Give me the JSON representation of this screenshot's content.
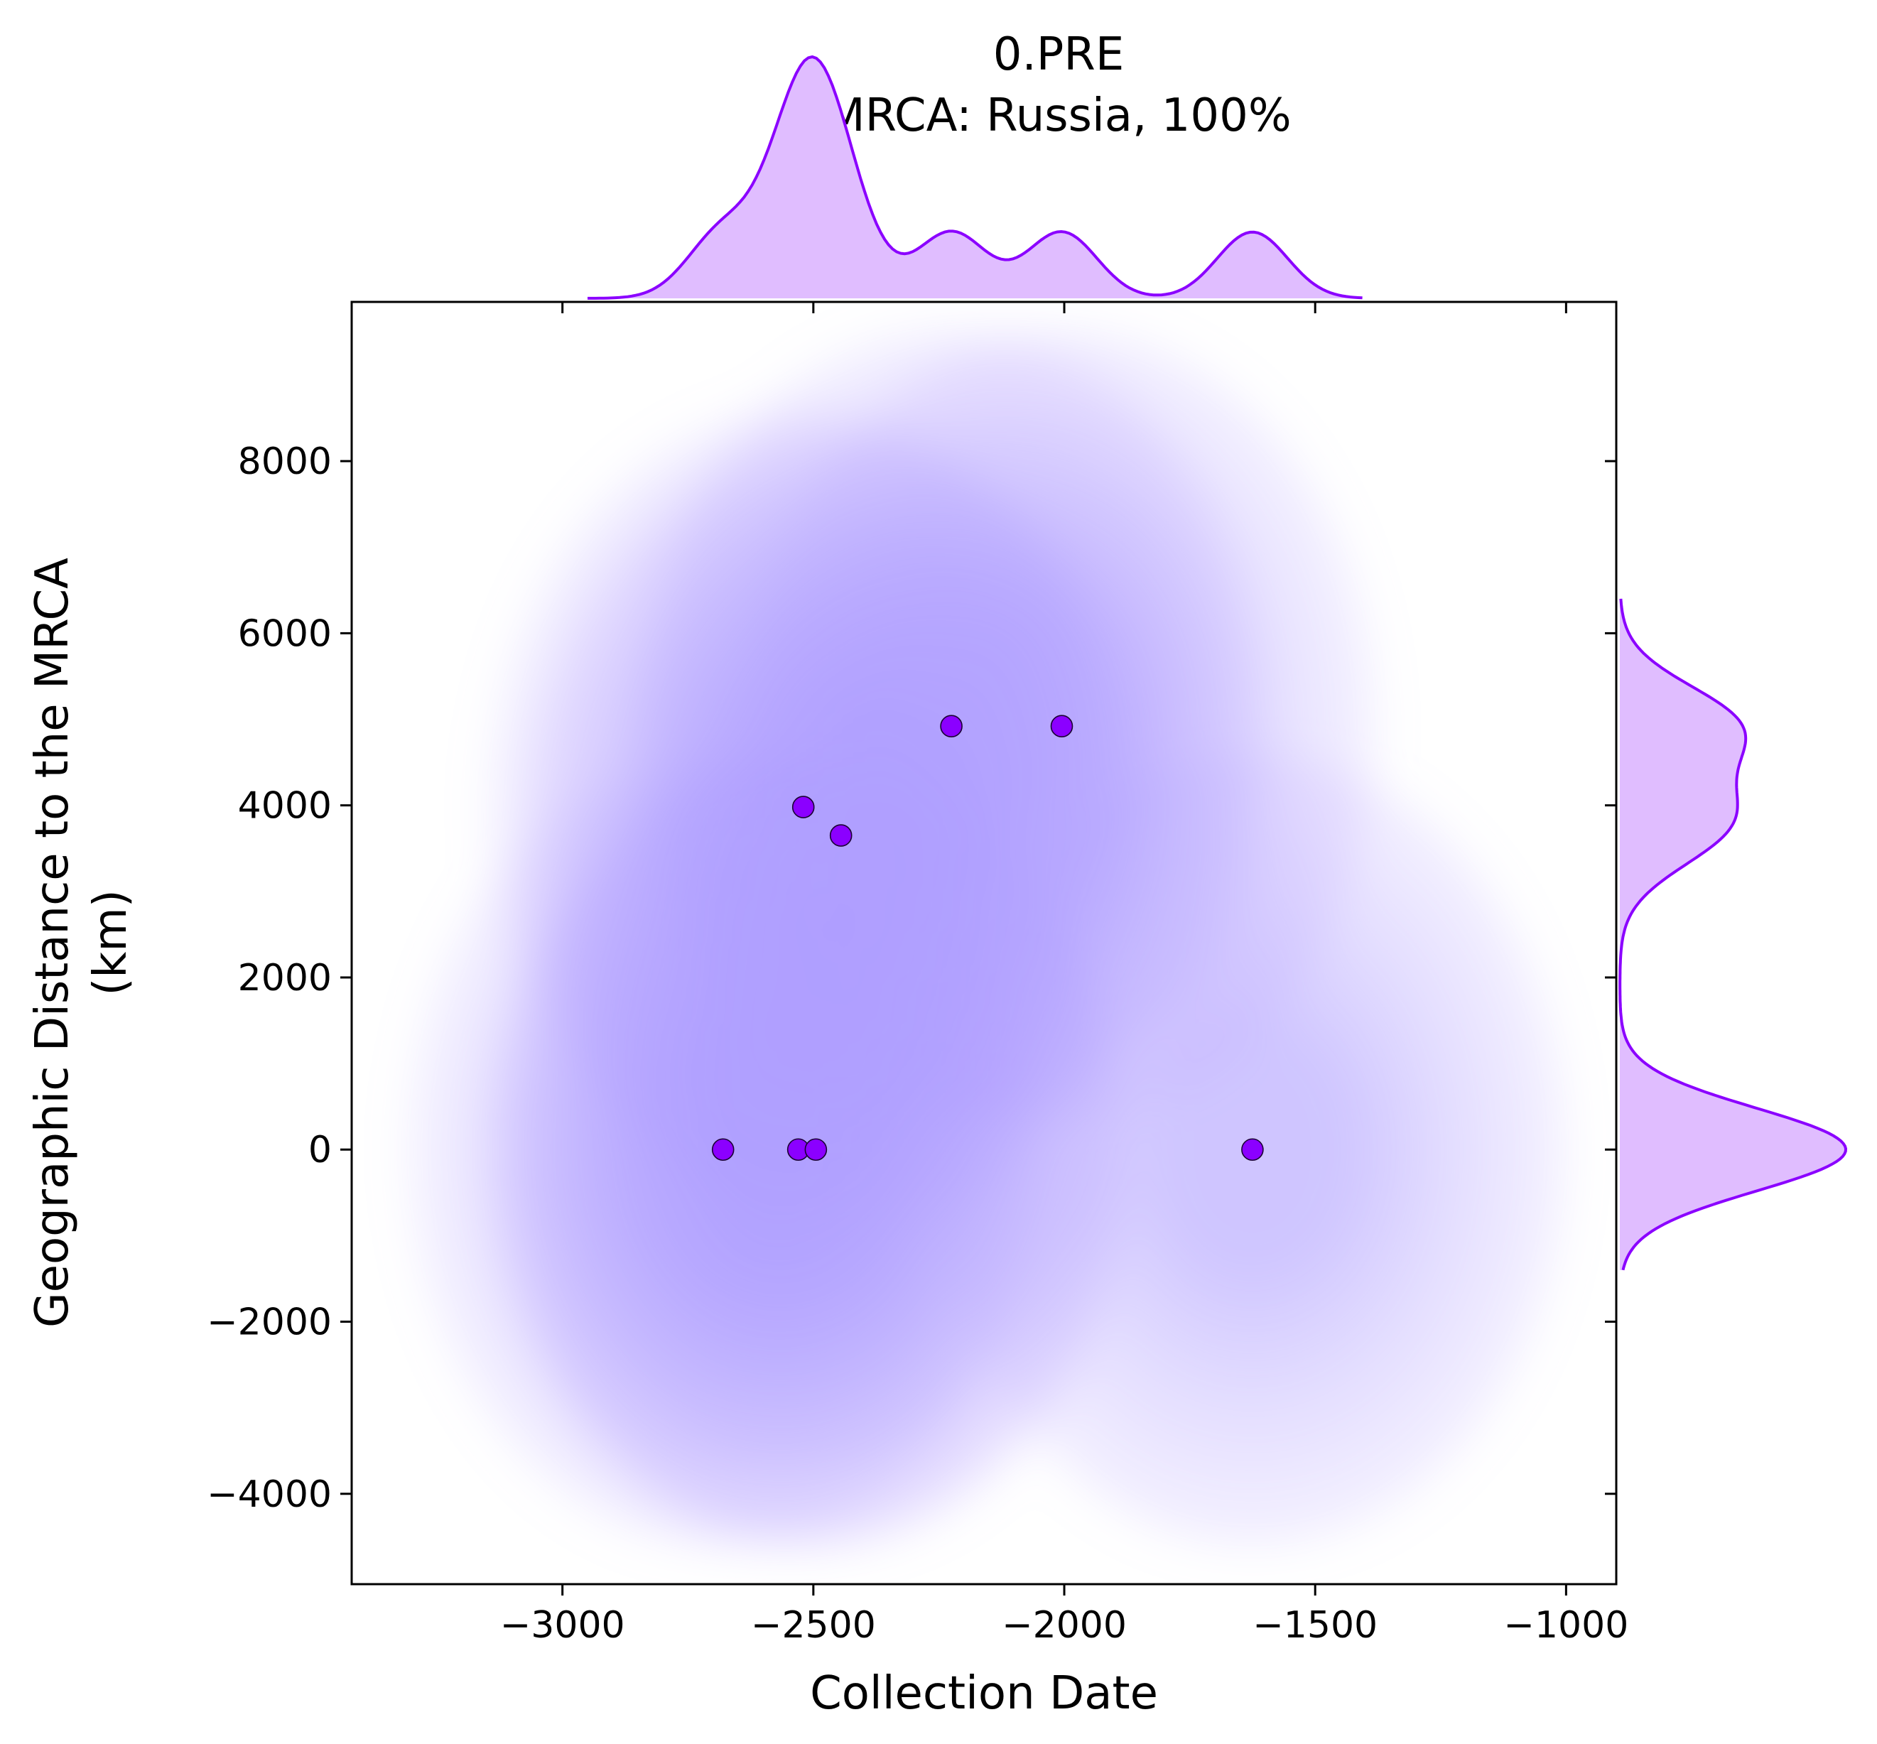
{
  "chart_data": {
    "type": "scatter",
    "title": "0.PRE",
    "subtitle": "MRCA: Russia, 100%",
    "xlabel": "Collection Date",
    "ylabel": "Geographic Distance to the MRCA\n(km)",
    "ylabel_lines": [
      "Geographic Distance to the MRCA",
      "(km)"
    ],
    "xlim": [
      -3420,
      -900
    ],
    "ylim": [
      -5050,
      9850
    ],
    "x_ticks": [
      -3000,
      -2500,
      -2000,
      -1500,
      -1000
    ],
    "x_tick_labels": [
      "−3000",
      "−2500",
      "−2000",
      "−1500",
      "−1000"
    ],
    "y_ticks": [
      -4000,
      -2000,
      0,
      2000,
      4000,
      6000,
      8000
    ],
    "y_tick_labels": [
      "−4000",
      "−2000",
      "0",
      "2000",
      "4000",
      "6000",
      "8000"
    ],
    "grid": false,
    "legend": "none",
    "marginal_x": "kde",
    "marginal_y": "kde",
    "joint_density": "filled kde contours",
    "points": [
      {
        "x": -2680,
        "y": 0
      },
      {
        "x": -2530,
        "y": 0
      },
      {
        "x": -2495,
        "y": 0
      },
      {
        "x": -2520,
        "y": 3980
      },
      {
        "x": -2445,
        "y": 3650
      },
      {
        "x": -2225,
        "y": 4920
      },
      {
        "x": -2005,
        "y": 4920
      },
      {
        "x": -1625,
        "y": 0
      }
    ],
    "colors": {
      "point_fill": "#8b00ff",
      "point_edge": "#1a0033",
      "marginal_line": "#8b00ff",
      "marginal_fill": "#e0bdff",
      "contour_base": "#b09aff"
    }
  }
}
